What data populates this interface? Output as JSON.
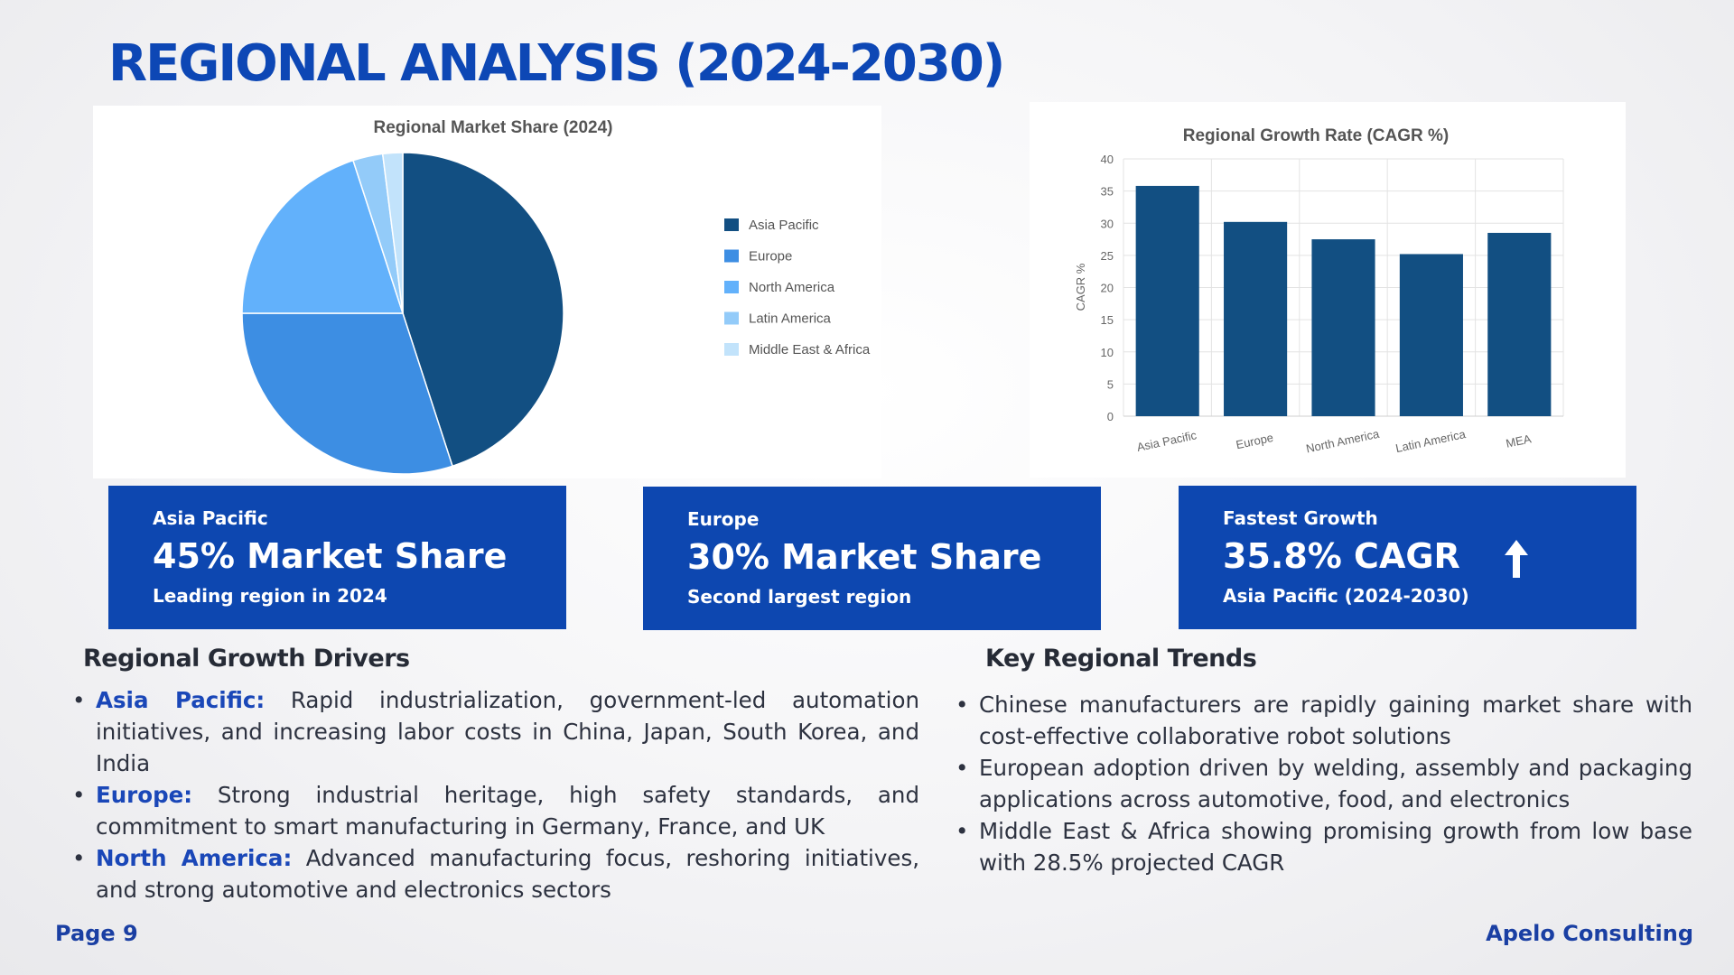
{
  "page_title": "REGIONAL ANALYSIS (2024-2030)",
  "chart_data": [
    {
      "type": "pie",
      "title": "Regional Market Share (2024)",
      "categories": [
        "Asia Pacific",
        "Europe",
        "North America",
        "Latin America",
        "Middle East & Africa"
      ],
      "values": [
        45,
        30,
        20,
        3,
        2
      ],
      "colors": [
        "#124f82",
        "#3d8ee3",
        "#62b1fb",
        "#93cbf9",
        "#c2e3fb"
      ],
      "legend_position": "right"
    },
    {
      "type": "bar",
      "title": "Regional Growth Rate (CAGR %)",
      "categories": [
        "Asia Pacific",
        "Europe",
        "North America",
        "Latin America",
        "MEA"
      ],
      "values": [
        35.8,
        30.2,
        27.5,
        25.2,
        28.5
      ],
      "color": "#124f82",
      "ylabel": "CAGR %",
      "xlabel": "",
      "ylim": [
        0,
        40
      ],
      "yticks": [
        0,
        5,
        10,
        15,
        20,
        25,
        30,
        35,
        40
      ],
      "grid": true
    }
  ],
  "cards": [
    {
      "label": "Asia Pacific",
      "value": "45% Market Share",
      "sub": "Leading region in 2024"
    },
    {
      "label": "Europe",
      "value": "30% Market Share",
      "sub": "Second largest region"
    },
    {
      "label": "Fastest Growth",
      "value": "35.8% CAGR",
      "sub": "Asia Pacific (2024-2030)",
      "icon": "arrow-up-icon"
    }
  ],
  "drivers": {
    "heading": "Regional Growth Drivers",
    "items": [
      {
        "region": "Asia Pacific:",
        "text": " Rapid industrialization, government-led automation initiatives, and increasing labor costs in China, Japan, South Korea, and India"
      },
      {
        "region": "Europe:",
        "text": " Strong industrial heritage, high safety standards, and commitment to smart manufacturing in Germany, France, and UK"
      },
      {
        "region": "North America:",
        "text": " Advanced manufacturing focus, reshoring initiatives, and strong automotive and electronics sectors"
      }
    ]
  },
  "trends": {
    "heading": "Key Regional Trends",
    "items": [
      "Chinese manufacturers are rapidly gaining market share with cost-effective collaborative robot solutions",
      "European adoption driven by welding, assembly and packaging applications across automotive, food, and electronics",
      "Middle East & Africa showing promising growth from low base with 28.5% projected CAGR"
    ]
  },
  "footer": {
    "page": "Page 9",
    "company": "Apelo Consulting"
  },
  "colors": {
    "brand_blue": "#0d47b0",
    "title_blue": "#0d47b5",
    "keyword_blue": "#1a47b8"
  }
}
